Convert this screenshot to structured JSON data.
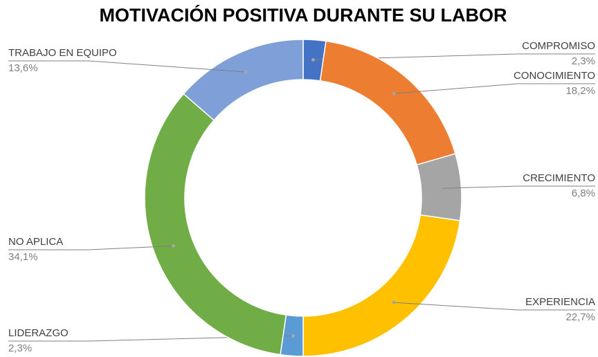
{
  "chart_data": {
    "type": "donut",
    "title": "MOTIVACIÓN POSITIVA DURANTE SU LABOR",
    "categories": [
      "COMPROMISO",
      "CONOCIMIENTO",
      "CRECIMIENTO",
      "EXPERIENCIA",
      "LIDERAZGO",
      "NO APLICA",
      "TRABAJO EN EQUIPO"
    ],
    "values": [
      2.3,
      18.2,
      6.8,
      22.7,
      2.3,
      34.1,
      13.6
    ],
    "value_labels": [
      "2,3%",
      "18,2%",
      "6,8%",
      "22,7%",
      "2,3%",
      "34,1%",
      "13,6%"
    ],
    "colors": [
      "#4472c4",
      "#ed7d31",
      "#a5a5a5",
      "#ffc000",
      "#5b9bd5",
      "#70ad47",
      "#7f9fd8"
    ]
  }
}
